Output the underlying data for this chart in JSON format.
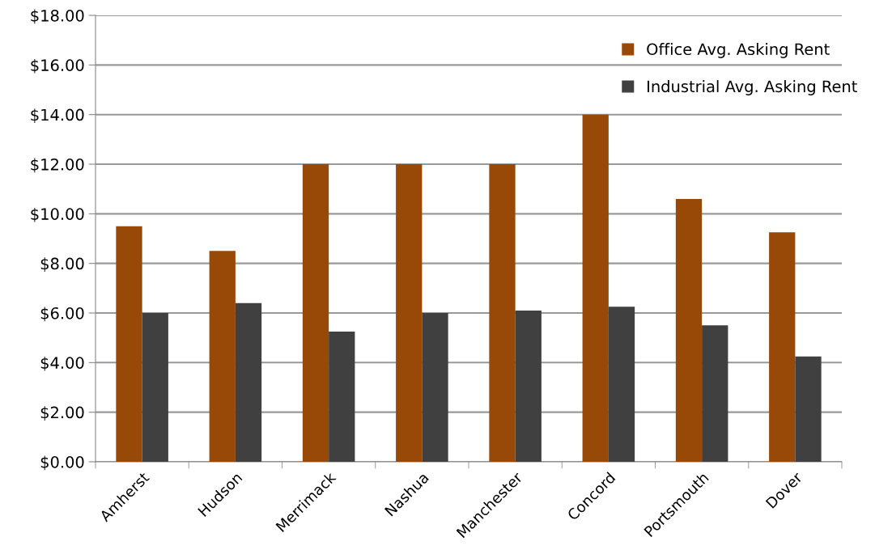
{
  "chart_data": {
    "type": "bar",
    "categories": [
      "Amherst",
      "Hudson",
      "Merrimack",
      "Nashua",
      "Manchester",
      "Concord",
      "Portsmouth",
      "Dover"
    ],
    "series": [
      {
        "name": "Office Avg. Asking Rent",
        "color": "#984807",
        "values": [
          9.5,
          8.5,
          12,
          12,
          12,
          14,
          10.6,
          9.25
        ]
      },
      {
        "name": "Industrial Avg. Asking Rent",
        "color": "#404040",
        "values": [
          6,
          6.4,
          5.25,
          6,
          6.1,
          6.25,
          5.5,
          4.25
        ]
      }
    ],
    "ylim": [
      0,
      18
    ],
    "yticks": [
      {
        "value": 0,
        "label": "$0.00"
      },
      {
        "value": 2,
        "label": "$2.00"
      },
      {
        "value": 4,
        "label": "$4.00"
      },
      {
        "value": 6,
        "label": "$6.00"
      },
      {
        "value": 8,
        "label": "$8.00"
      },
      {
        "value": 10,
        "label": "$10.00"
      },
      {
        "value": 12,
        "label": "$12.00"
      },
      {
        "value": 14,
        "label": "$14.00"
      },
      {
        "value": 16,
        "label": "$16.00"
      },
      {
        "value": 18,
        "label": "$18.00"
      }
    ],
    "grid": "y",
    "legend": "top right"
  }
}
